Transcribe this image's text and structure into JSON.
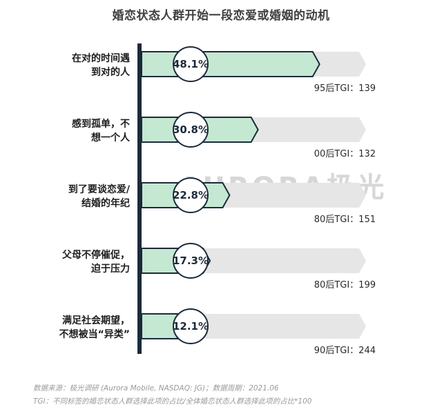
{
  "chart_data": {
    "type": "bar",
    "title": "婚恋状态人群开始一段恋爱或婚姻的动机",
    "categories": [
      [
        "在对的时间遇",
        "到对的人"
      ],
      [
        "感到孤单，不",
        "想一个人"
      ],
      [
        "到了要谈恋爱/",
        "结婚的年纪"
      ],
      [
        "父母不停催促，",
        "迫于压力"
      ],
      [
        "满足社会期望，",
        "不想被当“异类”"
      ]
    ],
    "values": [
      48.1,
      30.8,
      22.8,
      17.3,
      12.1
    ],
    "value_labels": [
      "48.1%",
      "30.8%",
      "22.8%",
      "17.3%",
      "12.1%"
    ],
    "tgi_labels": [
      "95后TGI：139",
      "00后TGI：132",
      "80后TGI：151",
      "80后TGI：199",
      "90后TGI：244"
    ],
    "xlim": [
      0,
      60
    ],
    "grid": false,
    "colors": {
      "bar_fill": "#c5e8d2",
      "bar_stroke": "#1b2a3a",
      "track": "#e6e6e6",
      "axis": "#1b2a3a"
    }
  },
  "watermark": "AURORA极光",
  "footnotes": [
    "数据来源：极光调研 (Aurora Mobile, NASDAQ: JG)；数据周期：2021.06",
    "TGI：不同标签的婚恋状态人群选择此项的占比/全体婚恋状态人群选择此项的占比*100"
  ]
}
